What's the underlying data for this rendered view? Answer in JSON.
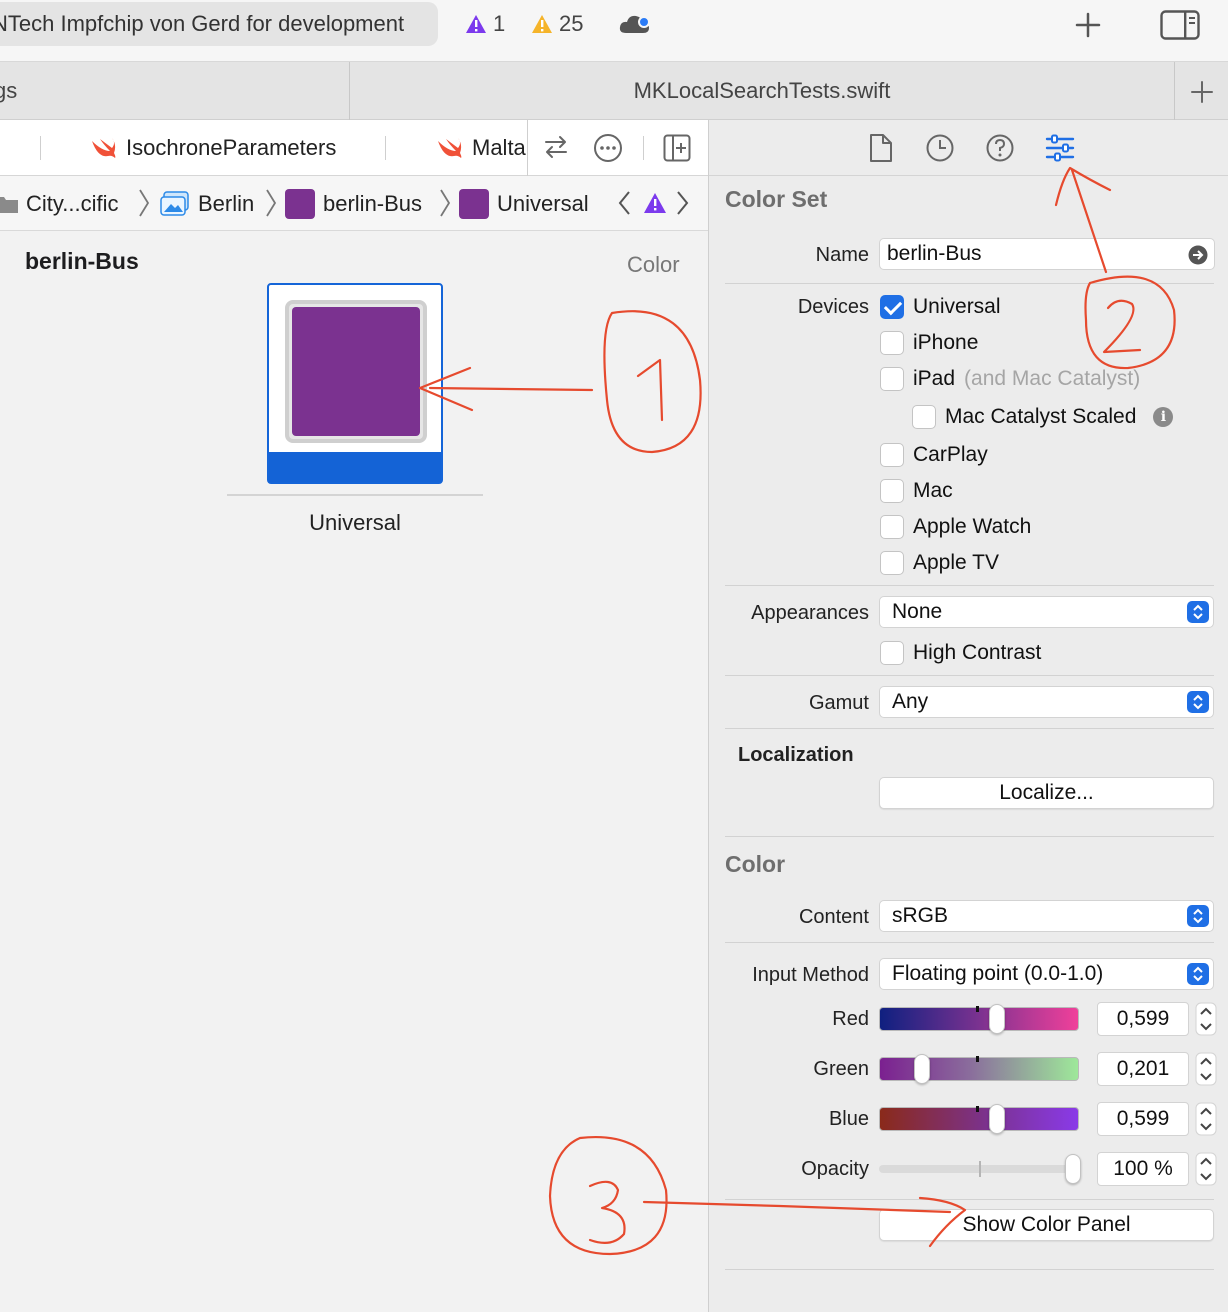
{
  "toolbar": {
    "scheme_label": "NTech Impfchip von Gerd for development",
    "error_count": "1",
    "warning_count": "25",
    "add_icon": "plus-icon",
    "inspector_toggle_icon": "sidebar-right-icon"
  },
  "tabbar": {
    "left_tab": "gs",
    "active_tab": "MKLocalSearchTests.swift"
  },
  "editor": {
    "tabs": [
      "IsochroneParameters",
      "Malta"
    ],
    "jumpbar": {
      "folder": "City...cific",
      "catalog": "Berlin",
      "asset": "berlin-Bus",
      "variant": "Universal"
    },
    "asset_title": "berlin-Bus",
    "asset_kind": "Color",
    "well_label": "Universal",
    "swatch_color": "#7b3290"
  },
  "inspector": {
    "color_set_title": "Color Set",
    "name_label": "Name",
    "name_value": "berlin-Bus",
    "devices_label": "Devices",
    "devices": [
      {
        "label": "Universal",
        "checked": true
      },
      {
        "label": "iPhone",
        "checked": false
      },
      {
        "label": "iPad",
        "checked": false,
        "note": "(and Mac Catalyst)"
      },
      {
        "label": "Mac Catalyst Scaled",
        "checked": false
      },
      {
        "label": "CarPlay",
        "checked": false
      },
      {
        "label": "Mac",
        "checked": false
      },
      {
        "label": "Apple Watch",
        "checked": false
      },
      {
        "label": "Apple TV",
        "checked": false
      }
    ],
    "appearances_label": "Appearances",
    "appearances_value": "None",
    "high_contrast_label": "High Contrast",
    "gamut_label": "Gamut",
    "gamut_value": "Any",
    "localization_title": "Localization",
    "localize_button": "Localize...",
    "color_title": "Color",
    "content_label": "Content",
    "content_value": "sRGB",
    "input_method_label": "Input Method",
    "input_method_value": "Floating point (0.0-1.0)",
    "red_label": "Red",
    "red_value": "0,599",
    "green_label": "Green",
    "green_value": "0,201",
    "blue_label": "Blue",
    "blue_value": "0,599",
    "opacity_label": "Opacity",
    "opacity_value": "100 %",
    "show_color_panel_button": "Show Color Panel"
  },
  "annotations": {
    "marker_1": "1",
    "marker_2": "2",
    "marker_3": "3",
    "ink_color": "#e64a2e"
  }
}
